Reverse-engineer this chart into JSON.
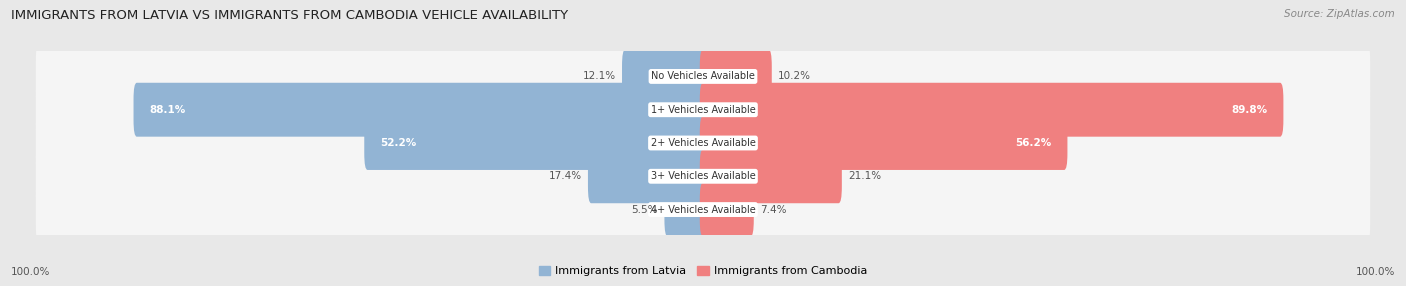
{
  "title": "IMMIGRANTS FROM LATVIA VS IMMIGRANTS FROM CAMBODIA VEHICLE AVAILABILITY",
  "source": "Source: ZipAtlas.com",
  "categories": [
    "No Vehicles Available",
    "1+ Vehicles Available",
    "2+ Vehicles Available",
    "3+ Vehicles Available",
    "4+ Vehicles Available"
  ],
  "latvia_values": [
    12.1,
    88.1,
    52.2,
    17.4,
    5.5
  ],
  "cambodia_values": [
    10.2,
    89.8,
    56.2,
    21.1,
    7.4
  ],
  "max_value": 100.0,
  "latvia_color": "#92b4d4",
  "cambodia_color": "#f08080",
  "latvia_color_dark": "#e85c8a",
  "latvia_label": "Immigrants from Latvia",
  "cambodia_label": "Immigrants from Cambodia",
  "bg_color": "#e8e8e8",
  "row_bg_color": "#f5f5f5",
  "footer_value": "100.0%"
}
